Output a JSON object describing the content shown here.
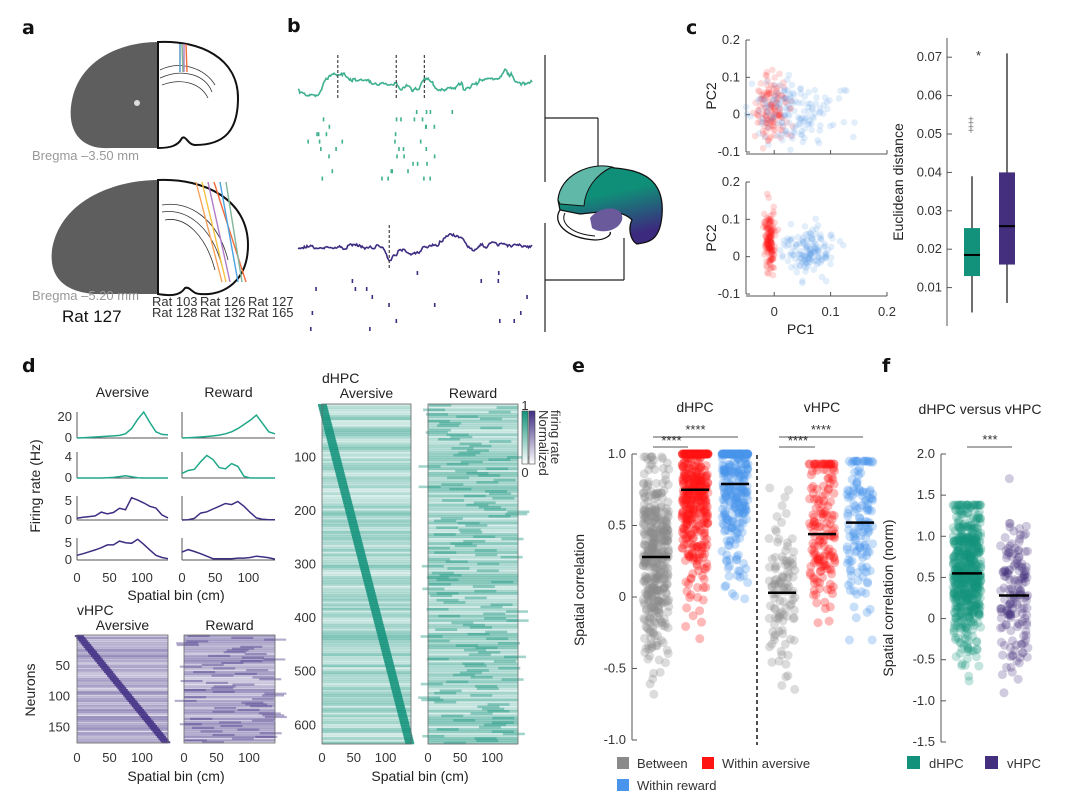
{
  "figure": {
    "panel_labels": [
      "a",
      "b",
      "c",
      "d",
      "e",
      "f"
    ]
  },
  "panel_a": {
    "bregma_top": "Bregma –3.50 mm",
    "bregma_bottom": "Bregma –5.20 mm",
    "rat_label": "Rat 127",
    "legend": [
      {
        "label": "Rat 103",
        "color": "#f7a35c"
      },
      {
        "label": "Rat 126",
        "color": "#f5c342"
      },
      {
        "label": "Rat 127",
        "color": "#b07cc6"
      },
      {
        "label": "Rat 128",
        "color": "#f26b3a"
      },
      {
        "label": "Rat 132",
        "color": "#4aa3df"
      },
      {
        "label": "Rat 165",
        "color": "#7fb59a"
      }
    ]
  },
  "panel_b": {
    "dhpc_color": "#3eb08f",
    "vhpc_color": "#3f2d82",
    "dashed_markers_dhpc": [
      0.17,
      0.42,
      0.54
    ],
    "dashed_markers_vhpc": [
      0.39
    ]
  },
  "chart_data": [
    {
      "id": "c-scatter-top",
      "type": "scatter",
      "xlabel": "",
      "ylabel": "PC2",
      "xlim": [
        -0.05,
        0.2
      ],
      "ylim": [
        -0.1,
        0.2
      ],
      "yticks": [
        "0.2",
        "0.1",
        "0",
        "-0.1"
      ],
      "series": [
        {
          "name": "Within aversive",
          "color": "#ff3030",
          "center": [
            -0.005,
            0.01
          ],
          "spread": [
            0.015,
            0.045
          ]
        },
        {
          "name": "Within reward",
          "color": "#5a9be6",
          "center": [
            0.04,
            0.005
          ],
          "spread": [
            0.04,
            0.04
          ]
        }
      ]
    },
    {
      "id": "c-scatter-bottom",
      "type": "scatter",
      "xlabel": "PC1",
      "ylabel": "PC2",
      "xlim": [
        -0.05,
        0.2
      ],
      "ylim": [
        -0.1,
        0.2
      ],
      "xticks": [
        "0",
        "0.1",
        "0.2"
      ],
      "yticks": [
        "0.2",
        "0.1",
        "0",
        "-0.1"
      ],
      "series": [
        {
          "name": "Within aversive",
          "color": "#ff1a1a",
          "center": [
            -0.008,
            0.04
          ],
          "spread": [
            0.005,
            0.04
          ]
        },
        {
          "name": "Within reward",
          "color": "#5a9be6",
          "center": [
            0.06,
            0.015
          ],
          "spread": [
            0.025,
            0.03
          ]
        }
      ]
    },
    {
      "id": "c-box",
      "type": "box",
      "ylabel": "Euclidean distance",
      "ylim": [
        0.0,
        0.075
      ],
      "yticks": [
        "0.07",
        "0.06",
        "0.05",
        "0.04",
        "0.03",
        "0.02",
        "0.01"
      ],
      "annotation": "*",
      "boxes": [
        {
          "name": "dHPC",
          "color": "#12927a",
          "q1": 0.013,
          "median": 0.0185,
          "q3": 0.0255,
          "whisker_low": 0.0035,
          "whisker_high": 0.039,
          "outliers": [
            0.051,
            0.052,
            0.053,
            0.054
          ]
        },
        {
          "name": "vHPC",
          "color": "#432f7d",
          "q1": 0.016,
          "median": 0.026,
          "q3": 0.04,
          "whisker_low": 0.006,
          "whisker_high": 0.071,
          "outliers": []
        }
      ]
    },
    {
      "id": "d-tuning",
      "type": "line",
      "col_titles": [
        "Aversive",
        "Reward"
      ],
      "ylabel": "Firing rate (Hz)",
      "xlabel": "Spatial bin (cm)",
      "xticks": [
        "0",
        "50",
        "100"
      ],
      "xlim": [
        0,
        140
      ],
      "rows": [
        {
          "color": "#1fa889",
          "yticks": [
            "20",
            "0"
          ],
          "ymax": 25,
          "aversive": [
            0,
            0.3,
            0.6,
            1,
            1.3,
            1.6,
            2,
            2.5,
            4,
            9,
            18,
            25,
            15,
            6,
            3.5,
            3
          ],
          "reward": [
            0,
            0.3,
            0.6,
            1,
            1.4,
            2,
            2.8,
            4,
            6,
            9,
            13,
            17,
            22,
            14,
            6,
            4
          ]
        },
        {
          "color": "#1fa889",
          "yticks": [
            "4",
            "0"
          ],
          "ymax": 4.5,
          "aversive": [
            0,
            0,
            0,
            0,
            0,
            0.05,
            0.1,
            0.25,
            0.4,
            0.2,
            0.05,
            0,
            0,
            0,
            0,
            0
          ],
          "reward": [
            0.8,
            1.3,
            1.5,
            2.8,
            3.9,
            3.2,
            1.8,
            1.6,
            2.5,
            2.0,
            0.3,
            0,
            0,
            0,
            0,
            0
          ]
        },
        {
          "color": "#3f2d82",
          "yticks": [
            "5",
            "0"
          ],
          "ymax": 7,
          "aversive": [
            0.5,
            0.8,
            1,
            1.2,
            2.3,
            1.8,
            2.2,
            3.4,
            3.0,
            6.5,
            5.8,
            5.0,
            4.0,
            3.5,
            1.5,
            0.6
          ],
          "reward": [
            0,
            0.1,
            0.5,
            2.0,
            2.4,
            3.2,
            4.0,
            4.8,
            4.5,
            5.4,
            4.0,
            2.2,
            0.6,
            0.2,
            0.1,
            0.1
          ]
        },
        {
          "color": "#3f2d82",
          "yticks": [
            "5",
            "0"
          ],
          "ymax": 7,
          "aversive": [
            1.5,
            2.0,
            2.6,
            3.2,
            3.9,
            4.8,
            4.8,
            6.0,
            5.5,
            5.3,
            6.6,
            5.0,
            3.2,
            1.5,
            0.8,
            0.4
          ],
          "reward": [
            2.5,
            3.3,
            2.7,
            2.0,
            1.2,
            0.4,
            0.4,
            0.4,
            0.4,
            0.6,
            0.6,
            0.8,
            1.2,
            1.0,
            0.7,
            0.3
          ]
        }
      ]
    },
    {
      "id": "d-heatmap-vhpc",
      "type": "heatmap",
      "title": "vHPC",
      "col_titles": [
        "Aversive",
        "Reward"
      ],
      "ylabel": "Neurons",
      "xlabel": "Spatial bin (cm)",
      "yticks": [
        "50",
        "100",
        "150"
      ],
      "xticks": [
        "0",
        "50",
        "100"
      ],
      "n_neurons": 175,
      "color": "#3f2d82"
    },
    {
      "id": "d-heatmap-dhpc",
      "type": "heatmap",
      "title": "dHPC",
      "col_titles": [
        "Aversive",
        "Reward"
      ],
      "xlabel": "Spatial bin (cm)",
      "yticks": [
        "100",
        "200",
        "300",
        "400",
        "500",
        "600"
      ],
      "xticks": [
        "0",
        "50",
        "100"
      ],
      "n_neurons": 635,
      "color": "#12927a",
      "colorbar": {
        "max": "1",
        "min": "0",
        "label_line1": "Normalized",
        "label_line2": "firing rate"
      }
    },
    {
      "id": "e-strip",
      "type": "scatter",
      "ylabel": "Spatial correlation",
      "ylim": [
        -1.0,
        1.0
      ],
      "yticks": [
        "1.0",
        "0.5",
        "0",
        "-0.5",
        "-1.0"
      ],
      "groups": [
        {
          "title": "dHPC",
          "sig_short": "****",
          "sig_long": "****",
          "categories": [
            {
              "name": "Between",
              "color": "#8a8a8a",
              "median": 0.28,
              "min": -0.75,
              "max": 0.98,
              "n": 420
            },
            {
              "name": "Within aversive",
              "color": "#ff1414",
              "median": 0.75,
              "min": -0.37,
              "max": 1.0,
              "n": 420
            },
            {
              "name": "Within reward",
              "color": "#4a95ec",
              "median": 0.79,
              "min": -0.43,
              "max": 1.0,
              "n": 320
            }
          ]
        },
        {
          "title": "vHPC",
          "sig_short": "****",
          "sig_long": "****",
          "categories": [
            {
              "name": "Between",
              "color": "#8a8a8a",
              "median": 0.03,
              "min": -0.78,
              "max": 0.88,
              "n": 110
            },
            {
              "name": "Within aversive",
              "color": "#ff1414",
              "median": 0.44,
              "min": -0.18,
              "max": 0.93,
              "n": 160
            },
            {
              "name": "Within reward",
              "color": "#4a95ec",
              "median": 0.52,
              "min": -0.34,
              "max": 0.95,
              "n": 140
            }
          ]
        }
      ],
      "legend": [
        {
          "label": "Between",
          "color": "#8a8a8a"
        },
        {
          "label": "Within aversive",
          "color": "#ff1414"
        },
        {
          "label": "Within reward",
          "color": "#4a95ec"
        }
      ]
    },
    {
      "id": "f-strip",
      "type": "scatter",
      "title": "dHPC versus vHPC",
      "ylabel": "Spatial correlation (norm)",
      "ylim": [
        -1.5,
        2.0
      ],
      "yticks": [
        "2.0",
        "1.5",
        "1.0",
        "0.5",
        "0",
        "-0.5",
        "-1.0",
        "-1.5"
      ],
      "significance": "***",
      "categories": [
        {
          "name": "dHPC",
          "color": "#12927a",
          "median": 0.55,
          "min": -0.87,
          "max": 1.38,
          "n": 600
        },
        {
          "name": "vHPC",
          "color": "#432f7d",
          "median": 0.28,
          "min": -1.18,
          "max": 2.0,
          "n": 160
        }
      ],
      "legend": [
        {
          "label": "dHPC",
          "color": "#12927a"
        },
        {
          "label": "vHPC",
          "color": "#432f7d"
        }
      ]
    }
  ]
}
